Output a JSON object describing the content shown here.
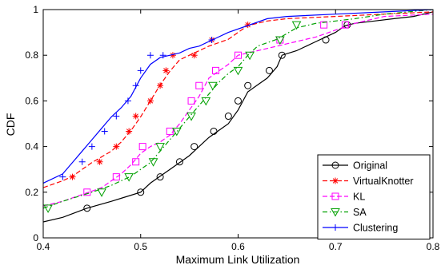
{
  "chart_data": {
    "type": "line",
    "xlabel": "Maximum Link Utilization",
    "ylabel": "CDF",
    "xlim": [
      0.4,
      0.8
    ],
    "ylim": [
      0,
      1
    ],
    "xticks": [
      0.4,
      0.5,
      0.6,
      0.7,
      0.8
    ],
    "yticks": [
      0,
      0.2,
      0.4,
      0.6,
      0.8,
      1
    ],
    "xtick_labels": [
      "0.4",
      "0.5",
      "0.6",
      "0.7",
      "0.8"
    ],
    "ytick_labels": [
      "0",
      "0.2",
      "0.4",
      "0.6",
      "0.8",
      "1"
    ],
    "grid": false,
    "legend_position": "bottom-right",
    "series": [
      {
        "name": "Original",
        "color": "#000000",
        "line_style": "solid",
        "marker": "circle",
        "x": [
          0.4,
          0.42,
          0.445,
          0.47,
          0.485,
          0.5,
          0.51,
          0.52,
          0.53,
          0.54,
          0.55,
          0.56,
          0.57,
          0.58,
          0.59,
          0.6,
          0.605,
          0.61,
          0.62,
          0.63,
          0.64,
          0.645,
          0.66,
          0.67,
          0.68,
          0.69,
          0.7,
          0.71,
          0.72,
          0.74,
          0.76,
          0.78,
          0.8
        ],
        "y": [
          0.07,
          0.09,
          0.13,
          0.16,
          0.18,
          0.2,
          0.24,
          0.27,
          0.3,
          0.33,
          0.36,
          0.4,
          0.44,
          0.47,
          0.5,
          0.56,
          0.6,
          0.64,
          0.67,
          0.7,
          0.75,
          0.8,
          0.82,
          0.84,
          0.86,
          0.88,
          0.9,
          0.93,
          0.94,
          0.95,
          0.96,
          0.97,
          0.99
        ],
        "marker_x": [
          0.445,
          0.5,
          0.52,
          0.54,
          0.555,
          0.575,
          0.59,
          0.6,
          0.61,
          0.632,
          0.645,
          0.69,
          0.712
        ],
        "marker_y": [
          0.13,
          0.2,
          0.267,
          0.333,
          0.4,
          0.467,
          0.533,
          0.6,
          0.667,
          0.733,
          0.8,
          0.867,
          0.933
        ]
      },
      {
        "name": "VirtualKnotter",
        "color": "#ff0000",
        "line_style": "dashed",
        "marker": "asterisk",
        "x": [
          0.4,
          0.42,
          0.43,
          0.45,
          0.47,
          0.48,
          0.49,
          0.5,
          0.51,
          0.52,
          0.53,
          0.54,
          0.55,
          0.57,
          0.59,
          0.61,
          0.63,
          0.65,
          0.7,
          0.75,
          0.8
        ],
        "y": [
          0.22,
          0.25,
          0.27,
          0.33,
          0.38,
          0.42,
          0.47,
          0.53,
          0.6,
          0.67,
          0.73,
          0.78,
          0.8,
          0.84,
          0.87,
          0.93,
          0.95,
          0.96,
          0.97,
          0.98,
          0.99
        ],
        "marker_x": [
          0.43,
          0.458,
          0.475,
          0.488,
          0.495,
          0.51,
          0.52,
          0.526,
          0.533,
          0.555,
          0.573,
          0.61
        ],
        "marker_y": [
          0.267,
          0.333,
          0.4,
          0.467,
          0.533,
          0.6,
          0.667,
          0.733,
          0.8,
          0.8,
          0.867,
          0.933
        ]
      },
      {
        "name": "KL",
        "color": "#ff00ff",
        "line_style": "dashed",
        "marker": "square",
        "x": [
          0.4,
          0.42,
          0.44,
          0.46,
          0.47,
          0.48,
          0.49,
          0.5,
          0.51,
          0.52,
          0.53,
          0.54,
          0.55,
          0.56,
          0.57,
          0.58,
          0.59,
          0.6,
          0.62,
          0.64,
          0.66,
          0.68,
          0.7,
          0.72,
          0.75,
          0.8
        ],
        "y": [
          0.14,
          0.16,
          0.19,
          0.22,
          0.25,
          0.28,
          0.32,
          0.37,
          0.4,
          0.42,
          0.45,
          0.5,
          0.56,
          0.62,
          0.7,
          0.73,
          0.76,
          0.8,
          0.82,
          0.84,
          0.86,
          0.88,
          0.91,
          0.94,
          0.97,
          0.98
        ],
        "marker_x": [
          0.445,
          0.475,
          0.495,
          0.502,
          0.53,
          0.552,
          0.56,
          0.577,
          0.6,
          0.643,
          0.688,
          0.71
        ],
        "marker_y": [
          0.2,
          0.267,
          0.333,
          0.4,
          0.467,
          0.6,
          0.667,
          0.733,
          0.8,
          0.867,
          0.933,
          0.933
        ]
      },
      {
        "name": "SA",
        "color": "#00a000",
        "line_style": "dashdot",
        "marker": "triangle-down",
        "x": [
          0.4,
          0.42,
          0.45,
          0.47,
          0.49,
          0.51,
          0.52,
          0.53,
          0.54,
          0.55,
          0.56,
          0.57,
          0.58,
          0.59,
          0.6,
          0.61,
          0.62,
          0.64,
          0.66,
          0.68,
          0.7,
          0.72,
          0.75,
          0.8
        ],
        "y": [
          0.13,
          0.16,
          0.2,
          0.23,
          0.27,
          0.33,
          0.38,
          0.43,
          0.48,
          0.53,
          0.58,
          0.63,
          0.68,
          0.72,
          0.75,
          0.8,
          0.84,
          0.87,
          0.92,
          0.94,
          0.95,
          0.96,
          0.98,
          1.0
        ],
        "marker_x": [
          0.405,
          0.46,
          0.488,
          0.513,
          0.52,
          0.537,
          0.552,
          0.567,
          0.574,
          0.6,
          0.612,
          0.643,
          0.66
        ],
        "marker_y": [
          0.13,
          0.2,
          0.267,
          0.333,
          0.4,
          0.467,
          0.533,
          0.6,
          0.667,
          0.733,
          0.8,
          0.867,
          0.933
        ]
      },
      {
        "name": "Clustering",
        "color": "#0000ff",
        "line_style": "solid",
        "marker": "plus",
        "x": [
          0.4,
          0.42,
          0.43,
          0.44,
          0.45,
          0.46,
          0.47,
          0.48,
          0.49,
          0.5,
          0.51,
          0.52,
          0.53,
          0.54,
          0.55,
          0.56,
          0.57,
          0.59,
          0.61,
          0.63,
          0.65,
          0.7,
          0.75,
          0.8
        ],
        "y": [
          0.24,
          0.28,
          0.33,
          0.38,
          0.43,
          0.48,
          0.53,
          0.57,
          0.62,
          0.7,
          0.76,
          0.79,
          0.8,
          0.81,
          0.83,
          0.84,
          0.86,
          0.9,
          0.93,
          0.96,
          0.97,
          0.98,
          0.99,
          1.0
        ],
        "marker_x": [
          0.42,
          0.44,
          0.45,
          0.463,
          0.475,
          0.487,
          0.495,
          0.5,
          0.51,
          0.523,
          0.573
        ],
        "marker_y": [
          0.267,
          0.333,
          0.4,
          0.467,
          0.533,
          0.6,
          0.667,
          0.733,
          0.8,
          0.8,
          0.867
        ]
      }
    ]
  }
}
